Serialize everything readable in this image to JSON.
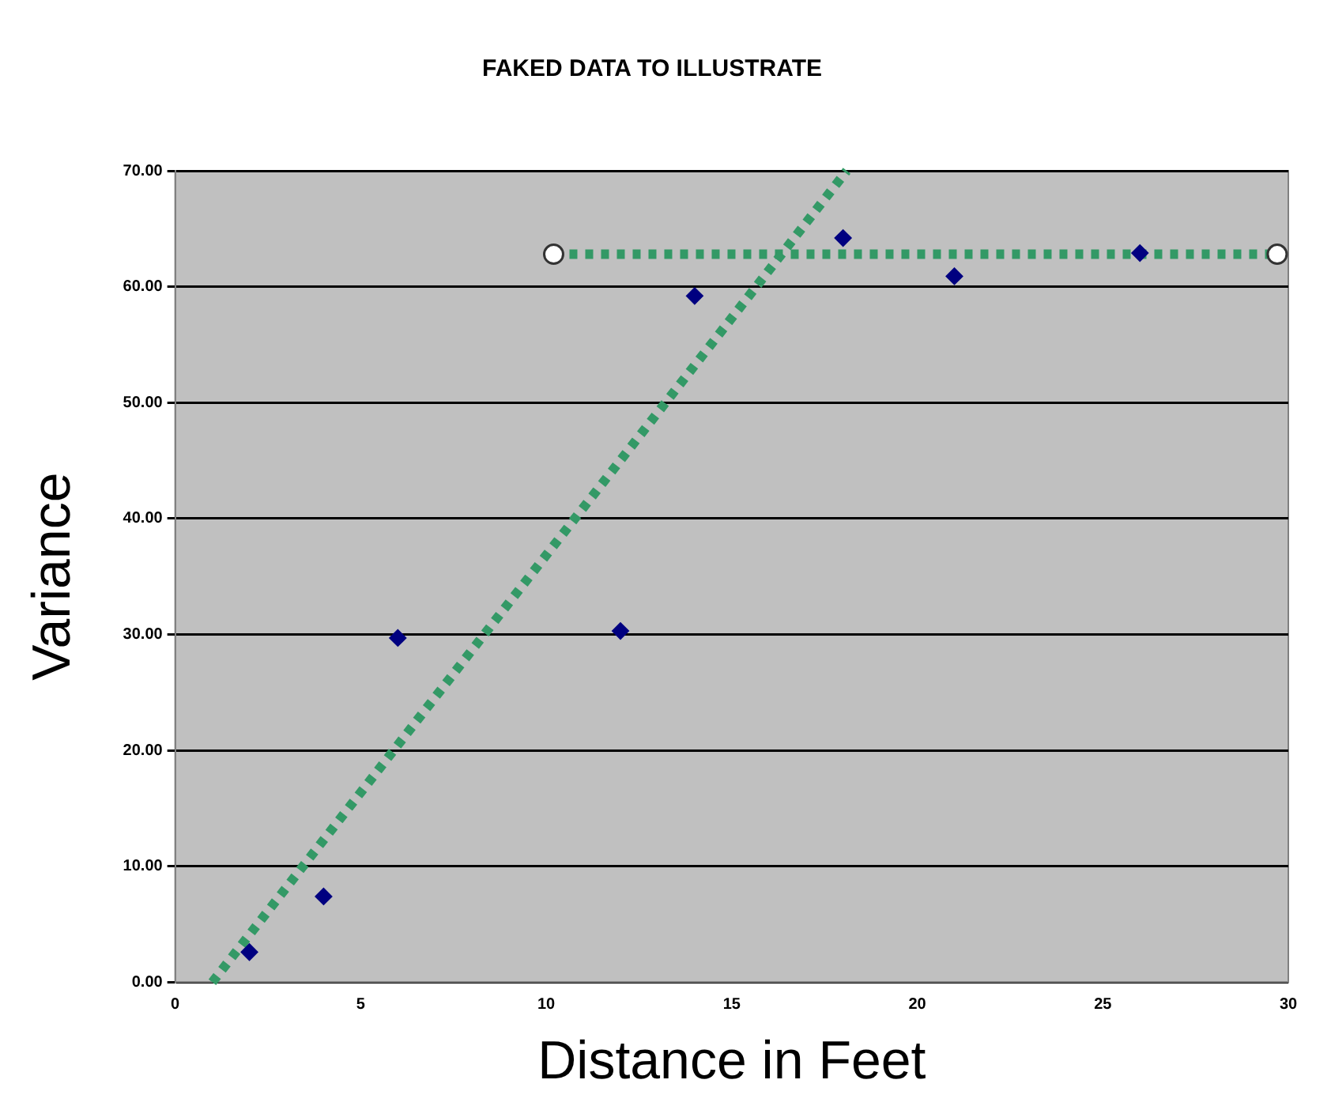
{
  "chart_data": {
    "type": "scatter",
    "title": "FAKED DATA TO ILLUSTRATE",
    "xlabel": "Distance in Feet",
    "ylabel": "Variance",
    "xlim": [
      0,
      30
    ],
    "xticks": [
      0,
      5,
      10,
      15,
      20,
      25,
      30
    ],
    "ylim": [
      0,
      70
    ],
    "yticks": [
      {
        "value": 0,
        "label": "0.00"
      },
      {
        "value": 10,
        "label": "10.00"
      },
      {
        "value": 20,
        "label": "20.00"
      },
      {
        "value": 30,
        "label": "30.00"
      },
      {
        "value": 40,
        "label": "40.00"
      },
      {
        "value": 50,
        "label": "50.00"
      },
      {
        "value": 60,
        "label": "60.00"
      },
      {
        "value": 70,
        "label": "70.00"
      }
    ],
    "grid": "y",
    "legend": false,
    "series": [
      {
        "color": "#000080",
        "marker": "diamond",
        "x": [
          2,
          4,
          6,
          12,
          14,
          18,
          21,
          26
        ],
        "values": [
          2.6,
          7.4,
          29.7,
          30.3,
          59.2,
          64.2,
          60.9,
          62.9
        ]
      },
      {
        "type": "line",
        "color": "#339966",
        "marker": "none",
        "line_style": "dotted",
        "x": [
          1,
          18.1
        ],
        "values": [
          0,
          70
        ]
      },
      {
        "type": "line",
        "color": "#339966",
        "marker": "circle",
        "line_style": "dotted",
        "x": [
          10.2,
          29.7
        ],
        "values": [
          62.8,
          62.8
        ]
      }
    ]
  }
}
